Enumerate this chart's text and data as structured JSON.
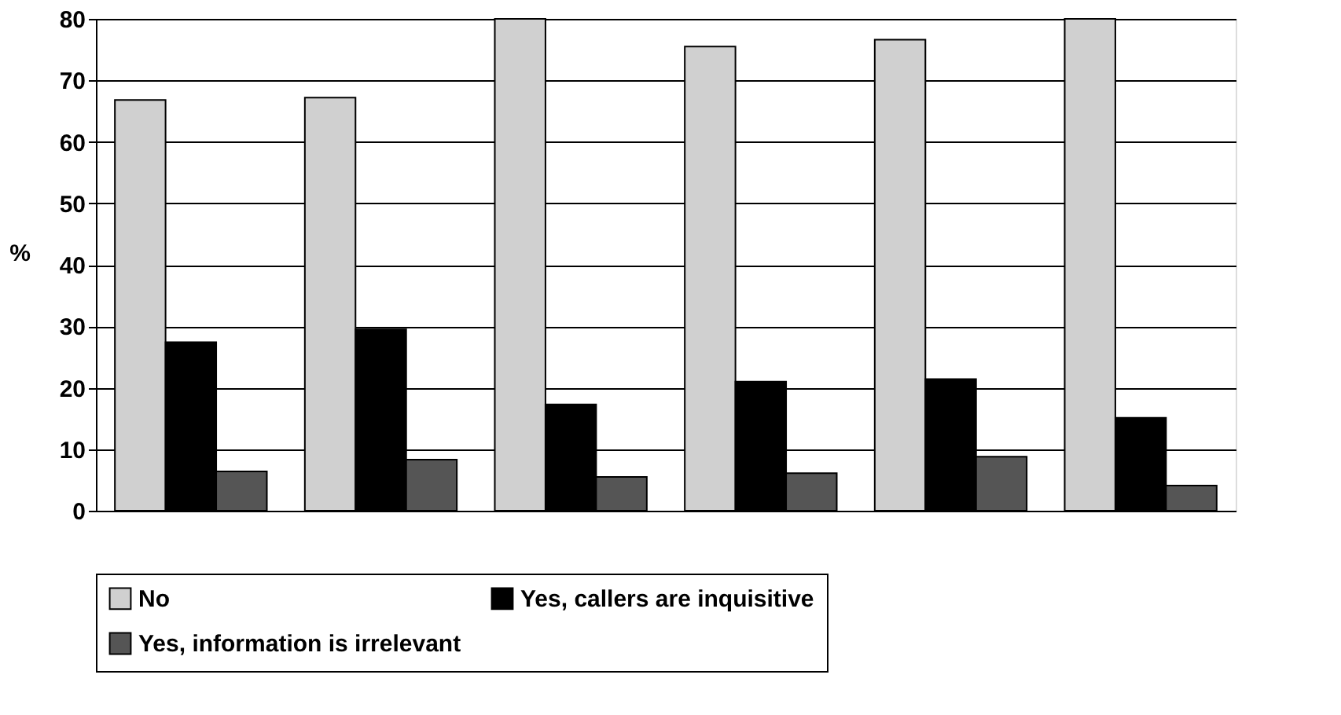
{
  "chart_data": {
    "type": "bar",
    "ylabel": "%",
    "categories": [
      null,
      null,
      null,
      null,
      null,
      null
    ],
    "series": [
      {
        "name": "No",
        "color": "#d0d0d0",
        "values": [
          66.8,
          67.2,
          80,
          75.5,
          76.6,
          80
        ]
      },
      {
        "name": "Yes, callers are inquisitive",
        "color": "#000000",
        "values": [
          27.4,
          29.5,
          17.3,
          21.0,
          21.4,
          15.1
        ]
      },
      {
        "name": "Yes, information is irrelevant",
        "color": "#555555",
        "values": [
          6.4,
          8.3,
          5.5,
          6.1,
          8.8,
          4.1
        ]
      }
    ],
    "ylim": [
      0,
      80
    ],
    "yticks": [
      0,
      10,
      20,
      30,
      40,
      50,
      60,
      70,
      80
    ],
    "grid": "y",
    "legend": "bottom",
    "tick_labels": "y"
  }
}
